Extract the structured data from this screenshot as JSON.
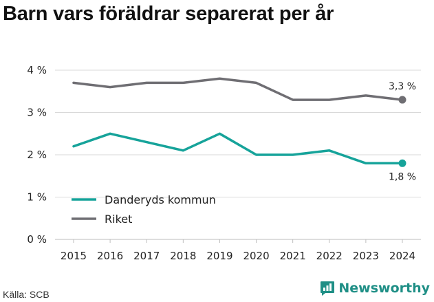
{
  "title": "Barn vars föräldrar separerat per år",
  "source": "Källa: SCB",
  "brand": {
    "name": "Newsworthy",
    "icon": "newsworthy-logo-icon",
    "color": "#1f8f86"
  },
  "chart_data": {
    "type": "line",
    "x": [
      "2015",
      "2016",
      "2017",
      "2018",
      "2019",
      "2020",
      "2021",
      "2022",
      "2023",
      "2024"
    ],
    "y_ticks": [
      "0 %",
      "1 %",
      "2 %",
      "3 %",
      "4 %"
    ],
    "ylim": [
      0,
      4
    ],
    "unit": "%",
    "grid": "horizontal",
    "legend_position": "lower-left",
    "series": [
      {
        "name": "Danderyds kommun",
        "color": "#16a39a",
        "values": [
          2.2,
          2.5,
          2.3,
          2.1,
          2.5,
          2.0,
          2.0,
          2.1,
          1.8,
          1.8
        ],
        "end_label": "1,8 %"
      },
      {
        "name": "Riket",
        "color": "#6f6e73",
        "values": [
          3.7,
          3.6,
          3.7,
          3.7,
          3.8,
          3.7,
          3.3,
          3.3,
          3.4,
          3.3
        ],
        "end_label": "3,3 %"
      }
    ]
  }
}
